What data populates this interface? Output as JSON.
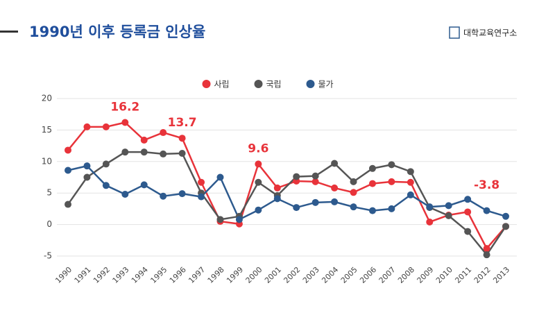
{
  "header": {
    "title": "1990년 이후 등록금 인상율",
    "logo": "대학교육연구소"
  },
  "chart_data": {
    "type": "line",
    "categories": [
      "1990",
      "1991",
      "1992",
      "1993",
      "1994",
      "1995",
      "1996",
      "1997",
      "1998",
      "1999",
      "2000",
      "2001",
      "2002",
      "2003",
      "2004",
      "2005",
      "2006",
      "2007",
      "2008",
      "2009",
      "2010",
      "2011",
      "2012",
      "2013"
    ],
    "series": [
      {
        "name": "사립",
        "color": "#e8333a",
        "values": [
          11.8,
          15.5,
          15.5,
          16.2,
          13.4,
          14.6,
          13.7,
          6.7,
          0.5,
          0.1,
          9.6,
          5.8,
          6.9,
          6.8,
          5.8,
          5.1,
          6.5,
          6.8,
          6.7,
          0.4,
          1.5,
          2.0,
          -3.8,
          -0.3
        ],
        "labeled_points": [
          3,
          6,
          10,
          22
        ]
      },
      {
        "name": "국립",
        "color": "#555555",
        "values": [
          3.2,
          7.5,
          9.6,
          11.5,
          11.5,
          11.2,
          11.3,
          5.0,
          0.8,
          1.3,
          6.7,
          4.6,
          7.6,
          7.7,
          9.7,
          6.8,
          8.9,
          9.5,
          8.4,
          2.7,
          1.4,
          -1.1,
          -4.8,
          -0.3
        ]
      },
      {
        "name": "물가",
        "color": "#2d5a8e",
        "values": [
          8.6,
          9.3,
          6.2,
          4.8,
          6.3,
          4.5,
          4.9,
          4.4,
          7.5,
          0.8,
          2.3,
          4.1,
          2.7,
          3.5,
          3.6,
          2.8,
          2.2,
          2.5,
          4.7,
          2.8,
          3.0,
          4.0,
          2.2,
          1.3
        ]
      }
    ],
    "ylim": [
      -5,
      20
    ],
    "yticks": [
      -5,
      0,
      5,
      10,
      15,
      20
    ],
    "grid": true,
    "legend": "top"
  }
}
